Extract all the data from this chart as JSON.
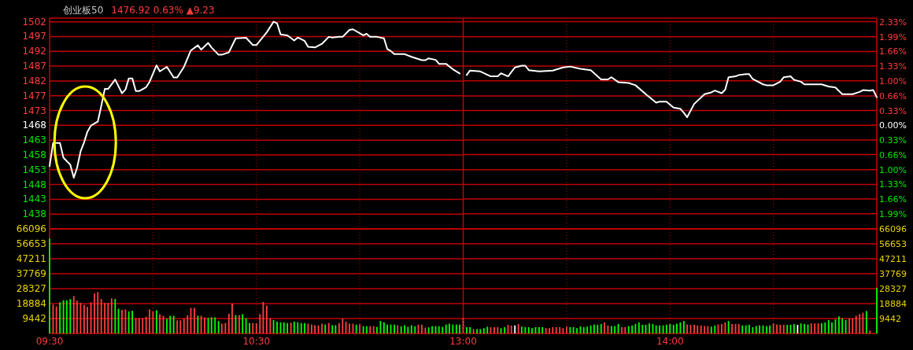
{
  "chart_data": [
    {
      "type": "line",
      "title": "创业板50",
      "subtitle": "1476.92 0.63% ▲9.23",
      "xlim": [
        9.5,
        11.5
      ],
      "xticks": [
        {
          "value": 9.5,
          "label": null
        },
        {
          "value": 10,
          "label": null
        },
        {
          "value": 10.5,
          "label": null
        },
        {
          "value": 11,
          "label": null
        }
      ],
      "ylim": [
        1433.5,
        1503.1
      ],
      "yticks": [
        {
          "value": 1501.89,
          "label": "1502"
        },
        {
          "value": 1497.01,
          "label": "1497"
        },
        {
          "value": 1492.12,
          "label": "1492"
        },
        {
          "value": 1487.23,
          "label": "1487"
        },
        {
          "value": 1482.35,
          "label": "1482"
        },
        {
          "value": 1477.46,
          "label": "1477"
        },
        {
          "value": 1472.58,
          "label": "1473"
        },
        {
          "value": 1467.69,
          "label": "1468"
        },
        {
          "value": 1462.8,
          "label": "1463"
        },
        {
          "value": 1457.92,
          "label": "1458"
        },
        {
          "value": 1453.03,
          "label": "1453"
        },
        {
          "value": 1448.15,
          "label": "1448"
        },
        {
          "value": 1443.26,
          "label": "1443"
        },
        {
          "value": 1438.37,
          "label": "1438"
        }
      ],
      "grid": true,
      "tick_labels": "y",
      "series": [
        {
          "color": "#ffffff",
          "x": [
            9.5,
            9.517,
            9.55,
            9.567,
            9.6,
            9.617,
            9.633,
            9.65,
            9.667,
            9.683,
            9.7,
            9.733,
            9.75,
            9.767,
            9.783,
            9.817,
            9.85,
            9.867,
            9.883,
            9.9,
            9.917,
            9.933,
            9.967,
            9.983,
            10.017,
            10.033,
            10.067,
            10.1,
            10.117,
            10.15,
            10.183,
            10.217,
            10.233,
            10.267,
            10.283,
            10.317,
            10.333,
            10.367,
            10.4,
            10.45,
            10.483,
            10.5,
            10.55,
            10.583,
            10.6,
            10.617,
            10.65,
            10.683,
            10.7,
            10.733,
            10.75,
            10.783,
            10.817,
            10.85,
            10.867,
            10.9,
            10.917,
            10.95,
            10.967,
            11.017,
            11.033,
            11.05,
            11.083,
            11.117,
            11.133,
            11.15,
            11.167,
            11.217,
            11.25,
            11.3,
            11.317,
            11.333,
            11.367,
            11.383,
            11.417,
            11.45,
            11.483
          ],
          "values": [
            1454.2,
            1461.9,
            1461.9,
            1457.0,
            1454.7,
            1450.4,
            1453.7,
            1459.1,
            1462.1,
            1465.6,
            1467.6,
            1468.9,
            1474.1,
            1479.7,
            1479.7,
            1482.8,
            1478.3,
            1479.5,
            1483.2,
            1483.2,
            1479.0,
            1479.0,
            1480.3,
            1482.0,
            1487.5,
            1485.5,
            1487.0,
            1483.5,
            1483.5,
            1487.0,
            1492.4,
            1494.1,
            1492.7,
            1494.9,
            1493.4,
            1491.0,
            1491.0,
            1491.8,
            1496.4,
            1496.6,
            1494.2,
            1494.2,
            1498.4,
            1501.9,
            1501.4,
            1497.7,
            1497.4,
            1495.7,
            1496.7,
            1495.6,
            1493.6,
            1493.4,
            1494.6,
            1496.9,
            1496.7,
            1496.9,
            1496.9,
            1499.2,
            1499.4,
            1497.4,
            1497.9,
            1496.9,
            1496.9,
            1496.4,
            1492.9,
            1492.2,
            1491.2,
            1491.2,
            1490.3,
            1489.2,
            1489.2,
            1489.8,
            1489.3,
            1488.0,
            1488.0,
            1486.2,
            1484.8
          ]
        }
      ]
    },
    {
      "type": "line",
      "xlim": [
        13,
        15
      ],
      "xticks": [
        {
          "value": 13,
          "label": null
        },
        {
          "value": 13.5,
          "label": null
        },
        {
          "value": 14,
          "label": null
        },
        {
          "value": 14.5,
          "label": null
        }
      ],
      "y2lim": [
        -2.33,
        2.41
      ],
      "y2ticks": [
        {
          "value": 2.33,
          "label": "2.33%"
        },
        {
          "value": 1.99,
          "label": "1.99%"
        },
        {
          "value": 1.66,
          "label": "1.66%"
        },
        {
          "value": 1.33,
          "label": "1.33%"
        },
        {
          "value": 1.0,
          "label": "1.00%"
        },
        {
          "value": 0.66,
          "label": "0.66%"
        },
        {
          "value": 0.33,
          "label": "0.33%"
        },
        {
          "value": 0,
          "label": "0.00%"
        },
        {
          "value": -0.33,
          "label": "0.33%"
        },
        {
          "value": -0.66,
          "label": "0.66%"
        },
        {
          "value": -1.0,
          "label": "1.00%"
        },
        {
          "value": -1.33,
          "label": "1.33%"
        },
        {
          "value": -1.66,
          "label": "1.66%"
        },
        {
          "value": -1.99,
          "label": "1.99%"
        }
      ],
      "grid": true,
      "tick_labels": "y",
      "series": [
        {
          "color": "#ffffff",
          "axis": "y2",
          "x": [
            13.017,
            13.033,
            13.083,
            13.133,
            13.167,
            13.183,
            13.217,
            13.25,
            13.283,
            13.3,
            13.317,
            13.367,
            13.433,
            13.483,
            13.517,
            13.567,
            13.617,
            13.667,
            13.7,
            13.717,
            13.75,
            13.8,
            13.833,
            13.883,
            13.933,
            13.95,
            13.983,
            14.017,
            14.05,
            14.067,
            14.083,
            14.117,
            14.167,
            14.2,
            14.217,
            14.25,
            14.267,
            14.283,
            14.317,
            14.333,
            14.367,
            14.383,
            14.4,
            14.45,
            14.467,
            14.5,
            14.533,
            14.55,
            14.583,
            14.6,
            14.633,
            14.65,
            14.733,
            14.767,
            14.8,
            14.833,
            14.883,
            14.917,
            14.933,
            14.967,
            14.983,
            15
          ],
          "values": [
            1.13,
            1.23,
            1.21,
            1.1,
            1.1,
            1.17,
            1.1,
            1.3,
            1.34,
            1.34,
            1.24,
            1.21,
            1.23,
            1.3,
            1.32,
            1.27,
            1.24,
            1.03,
            1.03,
            1.08,
            0.97,
            0.95,
            0.9,
            0.7,
            0.51,
            0.53,
            0.53,
            0.4,
            0.37,
            0.28,
            0.18,
            0.48,
            0.7,
            0.74,
            0.78,
            0.72,
            0.8,
            1.08,
            1.1,
            1.13,
            1.15,
            1.15,
            1.04,
            0.92,
            0.9,
            0.9,
            0.98,
            1.08,
            1.1,
            1.02,
            0.98,
            0.92,
            0.92,
            0.87,
            0.85,
            0.7,
            0.7,
            0.75,
            0.79,
            0.78,
            0.79,
            0.63
          ]
        }
      ]
    },
    {
      "type": "bar",
      "xlim": [
        9.5,
        11.5
      ],
      "xticks": [
        {
          "value": 9.5,
          "label": "09:30"
        },
        {
          "value": 10,
          "label": null
        },
        {
          "value": 10.5,
          "label": "10:30"
        },
        {
          "value": 11,
          "label": null
        }
      ],
      "ylim": [
        0,
        66096
      ],
      "yticks": [
        9442,
        18884,
        28327,
        37769,
        47211,
        56653,
        66096
      ],
      "grid": true,
      "series": [
        {
          "x": [
            9.5,
            9.517,
            9.533,
            9.55,
            9.567,
            9.583,
            9.6,
            9.617,
            9.633,
            9.65,
            9.667,
            9.683,
            9.7,
            9.717,
            9.733,
            9.75,
            9.767,
            9.783,
            9.8,
            9.817,
            9.833,
            9.85,
            9.867,
            9.883,
            9.9,
            9.917,
            9.933,
            9.95,
            9.967,
            9.983,
            10,
            10.017,
            10.033,
            10.05,
            10.067,
            10.083,
            10.1,
            10.117,
            10.133,
            10.15,
            10.167,
            10.183,
            10.2,
            10.217,
            10.233,
            10.25,
            10.267,
            10.283,
            10.3,
            10.317,
            10.333,
            10.35,
            10.367,
            10.383,
            10.4,
            10.417,
            10.433,
            10.45,
            10.467,
            10.483,
            10.5,
            10.517,
            10.533,
            10.55,
            10.567,
            10.583,
            10.6,
            10.617,
            10.633,
            10.65,
            10.667,
            10.683,
            10.7,
            10.717,
            10.733,
            10.75,
            10.767,
            10.783,
            10.8,
            10.817,
            10.833,
            10.85,
            10.867,
            10.883,
            10.9,
            10.917,
            10.933,
            10.95,
            10.967,
            10.983,
            11,
            11.017,
            11.033,
            11.05,
            11.067,
            11.083,
            11.1,
            11.117,
            11.133,
            11.15,
            11.167,
            11.183,
            11.2,
            11.217,
            11.233,
            11.25,
            11.267,
            11.283,
            11.3,
            11.317,
            11.333,
            11.35,
            11.367,
            11.383,
            11.4,
            11.417,
            11.433,
            11.45,
            11.467,
            11.483,
            11.5
          ],
          "values": [
            60000,
            18300,
            17200,
            19700,
            21000,
            21000,
            21800,
            23700,
            20700,
            19300,
            18100,
            16800,
            19700,
            25300,
            26200,
            21800,
            19300,
            19300,
            22200,
            21800,
            15600,
            14900,
            15200,
            13900,
            14300,
            9600,
            9600,
            9600,
            10600,
            15200,
            13900,
            14700,
            12200,
            11200,
            9300,
            11200,
            11200,
            8300,
            8300,
            9300,
            11600,
            16200,
            16200,
            11200,
            11200,
            10200,
            9800,
            10200,
            10200,
            7900,
            6200,
            6600,
            12500,
            18900,
            11600,
            11600,
            12200,
            9600,
            6600,
            6600,
            6600,
            12200,
            19900,
            17600,
            9600,
            8500,
            7500,
            7100,
            7100,
            6600,
            6900,
            7500,
            7100,
            6600,
            6600,
            6200,
            5600,
            5200,
            5200,
            6200,
            5600,
            6600,
            5200,
            5200,
            6600,
            9300,
            7500,
            6200,
            6200,
            5600,
            5800,
            4600,
            4600,
            4600,
            4600,
            4200,
            7900,
            7100,
            5600,
            5600,
            5600,
            5200,
            4600,
            5200,
            4200,
            5200,
            4600,
            5600,
            5600,
            3700,
            3900,
            4600,
            4600,
            4600,
            4200,
            5600,
            6200,
            5600,
            5600,
            5600,
            10000
          ],
          "colors": [
            "#00ff00",
            "#ff4040",
            "#ff4040",
            "#00ff00",
            "#00ff00",
            "#00ff00",
            "#00ff00",
            "#ff4040",
            "#ff4040",
            "#ff4040",
            "#ff4040",
            "#ff4040",
            "#ff4040",
            "#ff4040",
            "#ff4040",
            "#ff4040",
            "#ff4040",
            "#ff4040",
            "#ff4040",
            "#00ff00",
            "#00ff00",
            "#ff4040",
            "#ff4040",
            "#00ff00",
            "#00ff00",
            "#ff4040",
            "#ff4040",
            "#ff4040",
            "#ff4040",
            "#ff4040",
            "#ff4040",
            "#00ff00",
            "#ff4040",
            "#ff4040",
            "#00ff00",
            "#00ff00",
            "#00ff00",
            "#ff4040",
            "#ff4040",
            "#ff4040",
            "#ff4040",
            "#ff4040",
            "#ff4040",
            "#00ff00",
            "#ff4040",
            "#ff4040",
            "#00ff00",
            "#00ff00",
            "#00ff00",
            "#00ff00",
            "#ff4040",
            "#ff4040",
            "#ff4040",
            "#ff4040",
            "#00ff00",
            "#ff4040",
            "#00ff00",
            "#00ff00",
            "#00ff00",
            "#ff4040",
            "#ff4040",
            "#ff4040",
            "#ff4040",
            "#ff4040",
            "#ff4040",
            "#00ff00",
            "#00ff00",
            "#00ff00",
            "#00ff00",
            "#00ff00",
            "#ff4040",
            "#00ff00",
            "#00ff00",
            "#00ff00",
            "#00ff00",
            "#ff4040",
            "#ff4040",
            "#ff4040",
            "#ff4040",
            "#ff4040",
            "#00ff00",
            "#ff4040",
            "#00ff00",
            "#00ff00",
            "#ff4040",
            "#ff4040",
            "#ff4040",
            "#ff4040",
            "#ff4040",
            "#00ff00",
            "#ff4040",
            "#00ff00",
            "#00ff00",
            "#ff4040",
            "#ff4040",
            "#00ff00",
            "#00ff00",
            "#00ff00",
            "#00ff00",
            "#00ff00",
            "#00ff00",
            "#ff4040",
            "#00ff00",
            "#00ff00",
            "#00ff00",
            "#00ff00",
            "#00ff00",
            "#ff4040",
            "#ff4040",
            "#ff4040",
            "#00ff00",
            "#00ff00",
            "#00ff00",
            "#00ff00",
            "#00ff00",
            "#00ff00",
            "#00ff00",
            "#00ff00",
            "#00ff00",
            "#00ff00",
            "#ff4040"
          ]
        }
      ]
    },
    {
      "type": "bar",
      "xlim": [
        13,
        15
      ],
      "xticks": [
        {
          "value": 13,
          "label": "13:00"
        },
        {
          "value": 13.5,
          "label": null
        },
        {
          "value": 14,
          "label": "14:00"
        },
        {
          "value": 14.5,
          "label": null
        }
      ],
      "y2lim": [
        0,
        66096
      ],
      "y2ticks": [
        9442,
        18884,
        28327,
        37769,
        47211,
        56653,
        66096
      ],
      "grid": true,
      "series": [
        {
          "axis": "y2",
          "x": [
            13.017,
            13.033,
            13.05,
            13.067,
            13.083,
            13.1,
            13.117,
            13.133,
            13.15,
            13.167,
            13.183,
            13.2,
            13.217,
            13.233,
            13.25,
            13.267,
            13.283,
            13.3,
            13.317,
            13.333,
            13.35,
            13.367,
            13.383,
            13.4,
            13.417,
            13.433,
            13.45,
            13.467,
            13.483,
            13.5,
            13.517,
            13.533,
            13.55,
            13.567,
            13.583,
            13.6,
            13.617,
            13.633,
            13.65,
            13.667,
            13.683,
            13.7,
            13.717,
            13.733,
            13.75,
            13.767,
            13.783,
            13.8,
            13.817,
            13.833,
            13.85,
            13.867,
            13.883,
            13.9,
            13.917,
            13.933,
            13.95,
            13.967,
            13.983,
            14,
            14.017,
            14.033,
            14.05,
            14.067,
            14.083,
            14.1,
            14.117,
            14.133,
            14.15,
            14.167,
            14.183,
            14.2,
            14.217,
            14.233,
            14.25,
            14.267,
            14.283,
            14.3,
            14.317,
            14.333,
            14.35,
            14.367,
            14.383,
            14.4,
            14.417,
            14.433,
            14.45,
            14.467,
            14.483,
            14.5,
            14.517,
            14.533,
            14.55,
            14.567,
            14.583,
            14.6,
            14.617,
            14.633,
            14.65,
            14.667,
            14.683,
            14.7,
            14.717,
            14.733,
            14.75,
            14.767,
            14.783,
            14.8,
            14.817,
            14.833,
            14.85,
            14.867,
            14.883,
            14.9,
            14.917,
            14.933,
            14.95,
            14.967,
            15
          ],
          "values": [
            4000,
            4000,
            2800,
            2800,
            2800,
            3400,
            4300,
            4000,
            4000,
            4000,
            3400,
            4000,
            5500,
            5100,
            5100,
            6000,
            4300,
            4000,
            4000,
            3400,
            4000,
            4000,
            4000,
            3400,
            3400,
            4000,
            4000,
            4000,
            3400,
            4300,
            4000,
            4000,
            3400,
            4500,
            4000,
            4300,
            5100,
            5700,
            5500,
            6000,
            7000,
            5100,
            4700,
            4700,
            6000,
            4000,
            4000,
            4700,
            5100,
            6000,
            7000,
            5500,
            5500,
            6400,
            6000,
            5100,
            5100,
            5100,
            5500,
            6000,
            5500,
            6200,
            7000,
            7900,
            5700,
            5500,
            5500,
            5100,
            5100,
            4700,
            4700,
            4300,
            5100,
            5700,
            6000,
            7000,
            7900,
            6000,
            6000,
            6000,
            5100,
            5100,
            5500,
            4000,
            4700,
            5100,
            5100,
            4700,
            5100,
            6400,
            5700,
            5500,
            5500,
            5500,
            5500,
            6000,
            5500,
            6400,
            6000,
            5700,
            6400,
            6400,
            6400,
            6400,
            7000,
            8500,
            7000,
            8900,
            10800,
            9500,
            8500,
            9500,
            9500,
            11200,
            12300,
            13200,
            14200,
            1900,
            28900
          ],
          "colors": [
            "#00ff00",
            "#00ff00",
            "#ff4040",
            "#00ff00",
            "#00ff00",
            "#00ff00",
            "#00ff00",
            "#ff4040",
            "#ff4040",
            "#ff4040",
            "#00ff00",
            "#00ff00",
            "#ff4040",
            "#ff4040",
            "#ffffff",
            "#ff4040",
            "#00ff00",
            "#00ff00",
            "#00ff00",
            "#00ff00",
            "#00ff00",
            "#00ff00",
            "#00ff00",
            "#ff4040",
            "#ff4040",
            "#ff4040",
            "#ff4040",
            "#ff4040",
            "#ff4040",
            "#ff4040",
            "#00ff00",
            "#00ff00",
            "#00ff00",
            "#00ff00",
            "#00ff00",
            "#00ff00",
            "#00ff00",
            "#00ff00",
            "#00ff00",
            "#00ff00",
            "#ff4040",
            "#ff4040",
            "#00ff00",
            "#00ff00",
            "#00ff00",
            "#ff4040",
            "#ff4040",
            "#00ff00",
            "#00ff00",
            "#00ff00",
            "#00ff00",
            "#00ff00",
            "#00ff00",
            "#00ff00",
            "#00ff00",
            "#00ff00",
            "#00ff00",
            "#00ff00",
            "#00ff00",
            "#00ff00",
            "#00ff00",
            "#00ff00",
            "#00ff00",
            "#00ff00",
            "#ff4040",
            "#ff4040",
            "#ff4040",
            "#ff4040",
            "#ff4040",
            "#ff4040",
            "#ff4040",
            "#00ff00",
            "#00ff00",
            "#ff4040",
            "#ff4040",
            "#ff4040",
            "#00ff00",
            "#ff4040",
            "#ff4040",
            "#ff4040",
            "#00ff00",
            "#00ff00",
            "#00ff00",
            "#00ff00",
            "#00ff00",
            "#00ff00",
            "#00ff00",
            "#00ff00",
            "#00ff00",
            "#ff4040",
            "#ff4040",
            "#ff4040",
            "#ff4040",
            "#00ff00",
            "#00ff00",
            "#00ff00",
            "#ffffff",
            "#00ff00",
            "#00ff00",
            "#00ff00",
            "#ff4040",
            "#ff4040",
            "#ff4040",
            "#00ff00",
            "#00ff00",
            "#00ff00",
            "#00ff00",
            "#00ff00",
            "#00ff00",
            "#00ff00",
            "#00ff00",
            "#ff4040",
            "#ff4040",
            "#ff4040",
            "#ff4040",
            "#ff4040",
            "#00ff00",
            "#ff4040",
            "#00ff00"
          ]
        }
      ]
    }
  ]
}
